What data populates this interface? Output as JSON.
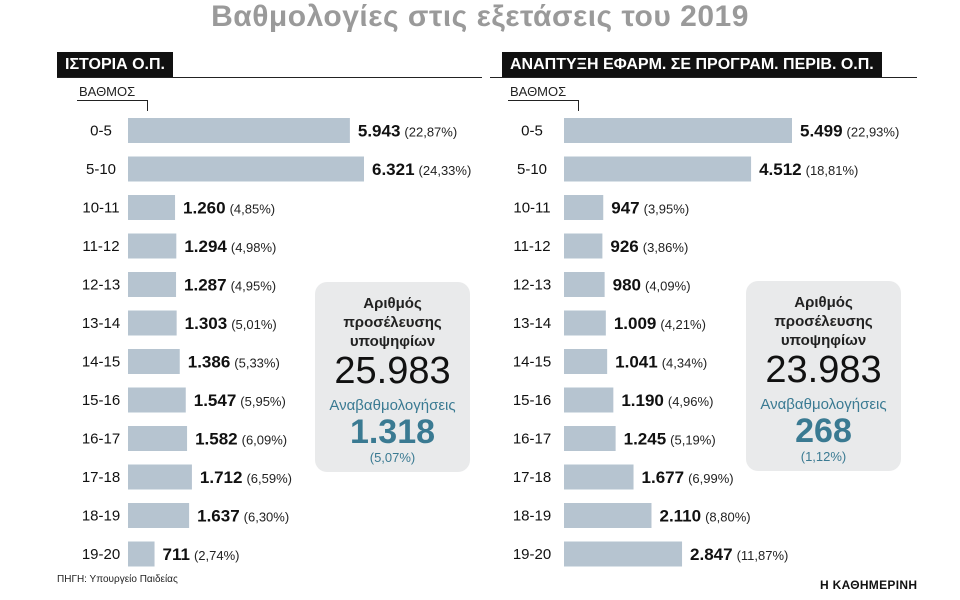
{
  "title": "Βαθμολογίες στις εξετάσεις του 2019",
  "source": "ΠΗΓΗ: Υπουργείο Παιδείας",
  "brand": "Η ΚΑΘΗΜΕΡΙΝΗ",
  "colors": {
    "bar": "#b6c4d0",
    "accent": "#3a7a92",
    "box": "#e9eaeb"
  },
  "chart_data": [
    {
      "type": "bar",
      "title": "ΙΣΤΟΡΙΑ Ο.Π.",
      "axis_label": "ΒΑΘΜΟΣ",
      "orientation": "horizontal",
      "categories": [
        "0-5",
        "5-10",
        "10-11",
        "11-12",
        "12-13",
        "13-14",
        "14-15",
        "15-16",
        "16-17",
        "17-18",
        "18-19",
        "19-20"
      ],
      "values": [
        5943,
        6321,
        1260,
        1294,
        1287,
        1303,
        1386,
        1547,
        1582,
        1712,
        1637,
        711
      ],
      "value_labels": [
        "5.943",
        "6.321",
        "1.260",
        "1.294",
        "1.287",
        "1.303",
        "1.386",
        "1.547",
        "1.582",
        "1.712",
        "1.637",
        "711"
      ],
      "pct_labels": [
        "(22,87%)",
        "(24,33%)",
        "(4,85%)",
        "(4,98%)",
        "(4,95%)",
        "(5,01%)",
        "(5,33%)",
        "(5,95%)",
        "(6,09%)",
        "(6,59%)",
        "(6,30%)",
        "(2,74%)"
      ],
      "info": {
        "label": [
          "Αριθμός",
          "προσέλευσης",
          "υποψηφίων"
        ],
        "total": "25.983",
        "reeval_label": "Αναβαθμολογήσεις",
        "reeval": "1.318",
        "reeval_pct": "(5,07%)"
      }
    },
    {
      "type": "bar",
      "title": "ΑΝΑΠΤΥΞΗ ΕΦΑΡΜ. ΣΕ ΠΡΟΓΡΑΜ. ΠΕΡΙΒ. Ο.Π.",
      "axis_label": "ΒΑΘΜΟΣ",
      "orientation": "horizontal",
      "categories": [
        "0-5",
        "5-10",
        "10-11",
        "11-12",
        "12-13",
        "13-14",
        "14-15",
        "15-16",
        "16-17",
        "17-18",
        "18-19",
        "19-20"
      ],
      "values": [
        5499,
        4512,
        947,
        926,
        980,
        1009,
        1041,
        1190,
        1245,
        1677,
        2110,
        2847
      ],
      "value_labels": [
        "5.499",
        "4.512",
        "947",
        "926",
        "980",
        "1.009",
        "1.041",
        "1.190",
        "1.245",
        "1.677",
        "2.110",
        "2.847"
      ],
      "pct_labels": [
        "(22,93%)",
        "(18,81%)",
        "(3,95%)",
        "(3,86%)",
        "(4,09%)",
        "(4,21%)",
        "(4,34%)",
        "(4,96%)",
        "(5,19%)",
        "(6,99%)",
        "(8,80%)",
        "(11,87%)"
      ],
      "info": {
        "label": [
          "Αριθμός",
          "προσέλευσης",
          "υποψηφίων"
        ],
        "total": "23.983",
        "reeval_label": "Αναβαθμολογήσεις",
        "reeval": "268",
        "reeval_pct": "(1,12%)"
      }
    }
  ]
}
